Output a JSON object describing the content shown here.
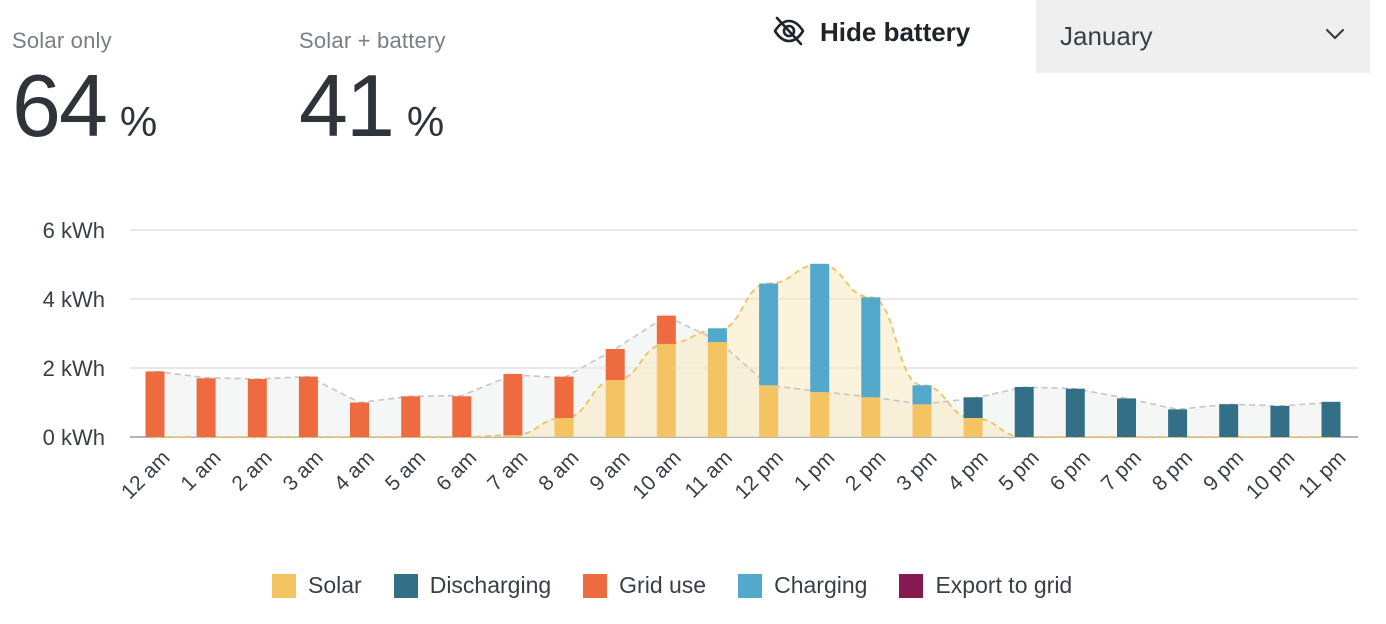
{
  "stats": {
    "solar_only": {
      "label": "Solar only",
      "value": "64",
      "unit": "%"
    },
    "solar_battery": {
      "label": "Solar + battery",
      "value": "41",
      "unit": "%"
    }
  },
  "controls": {
    "hide_battery_label": "Hide battery",
    "hide_battery_icon": "eye-slash-icon",
    "month_value": "January",
    "month_icon": "chevron-down-icon"
  },
  "colors": {
    "solar": "#f5c462",
    "discharging": "#336f87",
    "grid": "#ee6a3f",
    "charging": "#52a9cc",
    "export": "#86194f"
  },
  "chart_data": {
    "type": "bar",
    "stacked": true,
    "categories": [
      "12 am",
      "1 am",
      "2 am",
      "3 am",
      "4 am",
      "5 am",
      "6 am",
      "7 am",
      "8 am",
      "9 am",
      "10 am",
      "11 am",
      "12 pm",
      "1 pm",
      "2 pm",
      "3 pm",
      "4 pm",
      "5 pm",
      "6 pm",
      "7 pm",
      "8 pm",
      "9 pm",
      "10 pm",
      "11 pm"
    ],
    "y_ticks": [
      "0 kWh",
      "2 kWh",
      "4 kWh",
      "6 kWh"
    ],
    "ylim": [
      0,
      6
    ],
    "grid": true,
    "series": [
      {
        "name": "Solar",
        "color_key": "solar",
        "values": [
          0,
          0,
          0,
          0,
          0,
          0,
          0,
          0.05,
          0.55,
          1.65,
          2.7,
          2.75,
          1.5,
          1.3,
          1.15,
          0.95,
          0.55,
          0,
          0,
          0,
          0,
          0,
          0,
          0
        ]
      },
      {
        "name": "Discharging",
        "color_key": "discharging",
        "values": [
          0,
          0,
          0,
          0,
          0,
          0,
          0,
          0,
          0,
          0,
          0,
          0,
          0,
          0,
          0,
          0,
          0.6,
          1.45,
          1.4,
          1.12,
          0.8,
          0.95,
          0.9,
          1.02
        ]
      },
      {
        "name": "Grid use",
        "color_key": "grid",
        "values": [
          1.9,
          1.7,
          1.68,
          1.75,
          1.0,
          1.18,
          1.18,
          1.78,
          1.2,
          0.9,
          0.82,
          0,
          0,
          0,
          0,
          0,
          0,
          0,
          0,
          0,
          0,
          0,
          0,
          0
        ]
      },
      {
        "name": "Charging",
        "color_key": "charging",
        "values": [
          0,
          0,
          0,
          0,
          0,
          0,
          0,
          0,
          0,
          0,
          0,
          0.4,
          2.95,
          3.72,
          2.9,
          0.55,
          0,
          0,
          0,
          0,
          0,
          0,
          0,
          0
        ]
      },
      {
        "name": "Export to grid",
        "color_key": "export",
        "values": [
          0,
          0,
          0,
          0,
          0,
          0,
          0,
          0,
          0,
          0,
          0,
          0,
          0,
          0,
          0,
          0,
          0,
          0,
          0,
          0,
          0,
          0,
          0,
          0
        ]
      }
    ],
    "overlays": {
      "consumption_line": [
        1.9,
        1.72,
        1.68,
        1.75,
        1.0,
        1.18,
        1.2,
        1.8,
        1.72,
        2.55,
        3.5,
        2.8,
        1.5,
        1.32,
        1.16,
        0.95,
        1.12,
        1.45,
        1.4,
        1.12,
        0.8,
        0.95,
        0.9,
        1.0
      ],
      "solar_production_line": [
        0,
        0,
        0,
        0,
        0,
        0,
        0,
        0.05,
        0.55,
        1.65,
        2.7,
        3.1,
        4.45,
        5.0,
        4.05,
        1.5,
        0.55,
        0,
        0,
        0,
        0,
        0,
        0,
        0
      ]
    },
    "legend_placement": "bottom"
  }
}
